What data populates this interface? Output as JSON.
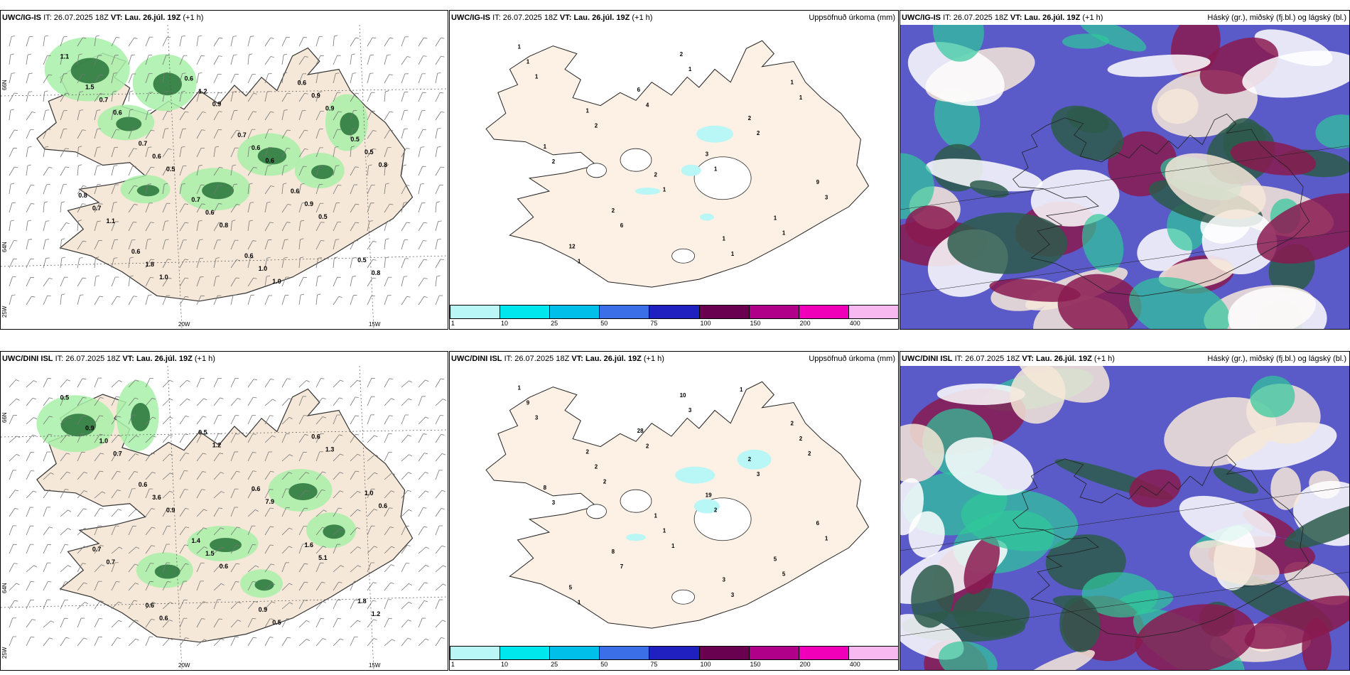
{
  "rows": [
    {
      "model": "UWC/IG-IS",
      "it_label": "IT:",
      "it_value": "26.07.2025 18Z",
      "vt_label": "VT:",
      "vt_value": "Lau. 26.júl. 19Z",
      "lead": "(+1 h)"
    },
    {
      "model": "UWC/DINI ISL",
      "it_label": "IT:",
      "it_value": "26.07.2025 18Z",
      "vt_label": "VT:",
      "vt_value": "Lau. 26.júl. 19Z",
      "lead": "(+1 h)"
    }
  ],
  "titles": {
    "precip": "Uppsöfnuð úrkoma (mm)",
    "cloud": "Háský (gr.), miðský (fj.bl.) og lágský (bl.)"
  },
  "axes": {
    "lat66": "66N",
    "lat64": "64N",
    "lon25": "25W",
    "lon20": "20W",
    "lon15": "15W"
  },
  "scale": {
    "ticks": [
      "1",
      "10",
      "25",
      "50",
      "75",
      "100",
      "150",
      "200",
      "400"
    ],
    "colors": [
      "#b9f6f6",
      "#00e8ee",
      "#00bfe8",
      "#3a6fe8",
      "#2020c0",
      "#6a0050",
      "#b0008a",
      "#f000b8",
      "#f8b8f0"
    ]
  },
  "colors": {
    "land": "#f6e8d8",
    "land_precip": "#fdf0e4",
    "green_light": "#a8f0a8",
    "green_dark": "#1e6a32",
    "cloud_high": "#2d5a4a",
    "cloud_mid": "#8a1a50",
    "cloud_low": "#5a5ac8",
    "cloud_teal": "#2fc79a"
  },
  "wind_values": {
    "top": [
      "1.1",
      "0.6",
      "0.5",
      "0.8",
      "1.0",
      "0.9",
      "0.8",
      "1.1",
      "1.0",
      "0.9",
      "0.6",
      "0.5",
      "0.8",
      "0.7",
      "0.6",
      "0.6",
      "1.0",
      "0.9",
      "0.5",
      "0.7",
      "1.8",
      "1.2",
      "0.6",
      "0.9",
      "0.5",
      "1.5",
      "0.7",
      "0.7",
      "0.6",
      "0.6",
      "0.5",
      "0.8",
      "0.6",
      "0.6",
      "0.7",
      "0.6"
    ],
    "bottom": [
      "0.5",
      "0.7",
      "0.9",
      "0.6",
      "0.5",
      "1.3",
      "0.6",
      "0.7",
      "0.6",
      "1.2",
      "7.9",
      "5.1",
      "1.2",
      "1.0",
      "3.6",
      "1.5",
      "0.9",
      "0.6",
      "1.0",
      "0.7",
      "0.6",
      "0.5",
      "0.6",
      "1.6",
      "1.8",
      "0.9",
      "0.6",
      "1.4"
    ]
  },
  "precip_values": {
    "top": [
      "1",
      "1",
      "2",
      "1",
      "1",
      "1",
      "2",
      "2",
      "2",
      "9",
      "12",
      "6",
      "3",
      "1",
      "1",
      "2",
      "1",
      "1",
      "1",
      "2",
      "6",
      "1",
      "2",
      "3",
      "1",
      "4",
      "1",
      "1",
      "1"
    ],
    "bottom": [
      "1",
      "2",
      "1",
      "3",
      "2",
      "8",
      "8",
      "10",
      "2",
      "6",
      "5",
      "28",
      "19",
      "5",
      "9",
      "2",
      "1",
      "3",
      "2",
      "3",
      "7",
      "3",
      "3",
      "1",
      "1",
      "2",
      "2",
      "5",
      "3",
      "2",
      "1",
      "1",
      "2"
    ]
  }
}
